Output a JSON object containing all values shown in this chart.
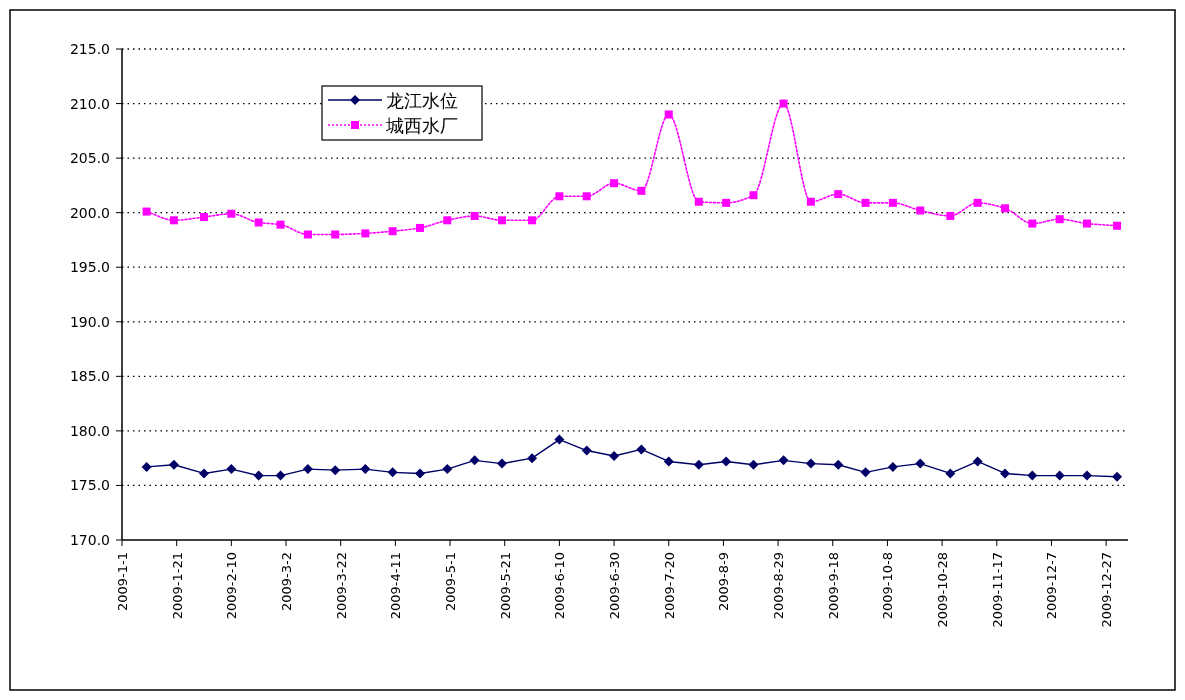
{
  "chart_data": {
    "type": "line",
    "x": [
      "2009-01-10",
      "2009-01-20",
      "2009-01-31",
      "2009-02-10",
      "2009-02-20",
      "2009-02-28",
      "2009-03-10",
      "2009-03-20",
      "2009-03-31",
      "2009-04-10",
      "2009-04-20",
      "2009-04-30",
      "2009-05-10",
      "2009-05-20",
      "2009-05-31",
      "2009-06-10",
      "2009-06-20",
      "2009-06-30",
      "2009-07-10",
      "2009-07-20",
      "2009-07-31",
      "2009-08-10",
      "2009-08-20",
      "2009-08-31",
      "2009-09-10",
      "2009-09-20",
      "2009-09-30",
      "2009-10-10",
      "2009-10-20",
      "2009-10-31",
      "2009-11-10",
      "2009-11-20",
      "2009-11-30",
      "2009-12-10",
      "2009-12-20",
      "2009-12-31"
    ],
    "series": [
      {
        "name": "龙江水位",
        "color": "#000066",
        "marker": "diamond",
        "line_style": "solid",
        "values": [
          176.7,
          176.9,
          176.1,
          176.5,
          175.9,
          175.9,
          176.5,
          176.4,
          176.5,
          176.2,
          176.1,
          176.5,
          177.3,
          177.0,
          177.5,
          179.2,
          178.2,
          177.7,
          178.3,
          177.2,
          176.9,
          177.2,
          176.9,
          177.3,
          177.0,
          176.9,
          176.2,
          176.7,
          177.0,
          176.1,
          177.2,
          176.1,
          175.9,
          175.9,
          175.9,
          175.8
        ]
      },
      {
        "name": "城西水厂",
        "color": "#ff00ff",
        "marker": "square",
        "line_style": "dotted",
        "values": [
          200.1,
          199.3,
          199.6,
          199.9,
          199.1,
          198.9,
          198.0,
          198.0,
          198.1,
          198.3,
          198.6,
          199.3,
          199.7,
          199.3,
          199.3,
          201.5,
          201.5,
          202.7,
          202.0,
          209.0,
          201.0,
          200.9,
          201.6,
          210.0,
          201.0,
          201.7,
          200.9,
          200.9,
          200.2,
          199.7,
          200.9,
          200.4,
          199.0,
          199.4,
          199.0,
          198.8
        ]
      }
    ],
    "xlim": [
      "2009-01-01",
      "2010-01-04"
    ],
    "xticks": [
      {
        "value": "2009-01-01",
        "label": "2009-1-1"
      },
      {
        "value": "2009-01-21",
        "label": "2009-1-21"
      },
      {
        "value": "2009-02-10",
        "label": "2009-2-10"
      },
      {
        "value": "2009-03-02",
        "label": "2009-3-2"
      },
      {
        "value": "2009-03-22",
        "label": "2009-3-22"
      },
      {
        "value": "2009-04-11",
        "label": "2009-4-11"
      },
      {
        "value": "2009-05-01",
        "label": "2009-5-1"
      },
      {
        "value": "2009-05-21",
        "label": "2009-5-21"
      },
      {
        "value": "2009-06-10",
        "label": "2009-6-10"
      },
      {
        "value": "2009-06-30",
        "label": "2009-6-30"
      },
      {
        "value": "2009-07-20",
        "label": "2009-7-20"
      },
      {
        "value": "2009-08-09",
        "label": "2009-8-9"
      },
      {
        "value": "2009-08-29",
        "label": "2009-8-29"
      },
      {
        "value": "2009-09-18",
        "label": "2009-9-18"
      },
      {
        "value": "2009-10-08",
        "label": "2009-10-8"
      },
      {
        "value": "2009-10-28",
        "label": "2009-10-28"
      },
      {
        "value": "2009-11-17",
        "label": "2009-11-17"
      },
      {
        "value": "2009-12-07",
        "label": "2009-12-7"
      },
      {
        "value": "2009-12-27",
        "label": "2009-12-27"
      }
    ],
    "ylim": [
      170,
      215
    ],
    "yticks": [
      {
        "value": 170,
        "label": "170.0"
      },
      {
        "value": 175,
        "label": "175.0"
      },
      {
        "value": 180,
        "label": "180.0"
      },
      {
        "value": 185,
        "label": "185.0"
      },
      {
        "value": 190,
        "label": "190.0"
      },
      {
        "value": 195,
        "label": "195.0"
      },
      {
        "value": 200,
        "label": "200.0"
      },
      {
        "value": 205,
        "label": "205.0"
      },
      {
        "value": 210,
        "label": "210.0"
      },
      {
        "value": 215,
        "label": "215.0"
      }
    ],
    "grid": "y",
    "legend": "top left"
  }
}
